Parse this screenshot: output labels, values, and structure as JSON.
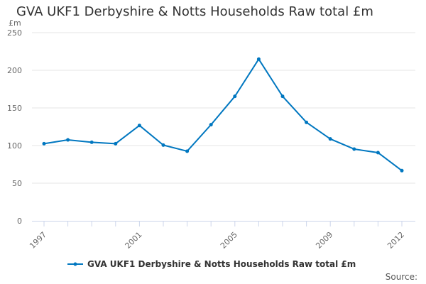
{
  "chart_data": {
    "type": "line",
    "title": "GVA UKF1 Derbyshire & Notts Households Raw total £m",
    "ylabel": "£m",
    "xlabel": "",
    "x": [
      1997,
      1998,
      1999,
      2000,
      2001,
      2002,
      2003,
      2004,
      2005,
      2006,
      2007,
      2008,
      2009,
      2010,
      2011,
      2012
    ],
    "x_tick_labels": [
      "1997",
      "2001",
      "2005",
      "2009",
      "2012"
    ],
    "y_ticks": [
      0,
      50,
      100,
      150,
      200,
      250
    ],
    "ylim": [
      0,
      250
    ],
    "grid": true,
    "legend_position": "bottom",
    "series": [
      {
        "name": "GVA UKF1 Derbyshire & Notts Households Raw total £m",
        "color": "#0077c0",
        "values": [
          102.5,
          107.5,
          104.4,
          102.5,
          126.7,
          100.6,
          92.5,
          127.7,
          165.4,
          214.8,
          165.4,
          130.8,
          108.8,
          95.3,
          90.6,
          66.7
        ]
      }
    ]
  },
  "source_label": "Source:"
}
